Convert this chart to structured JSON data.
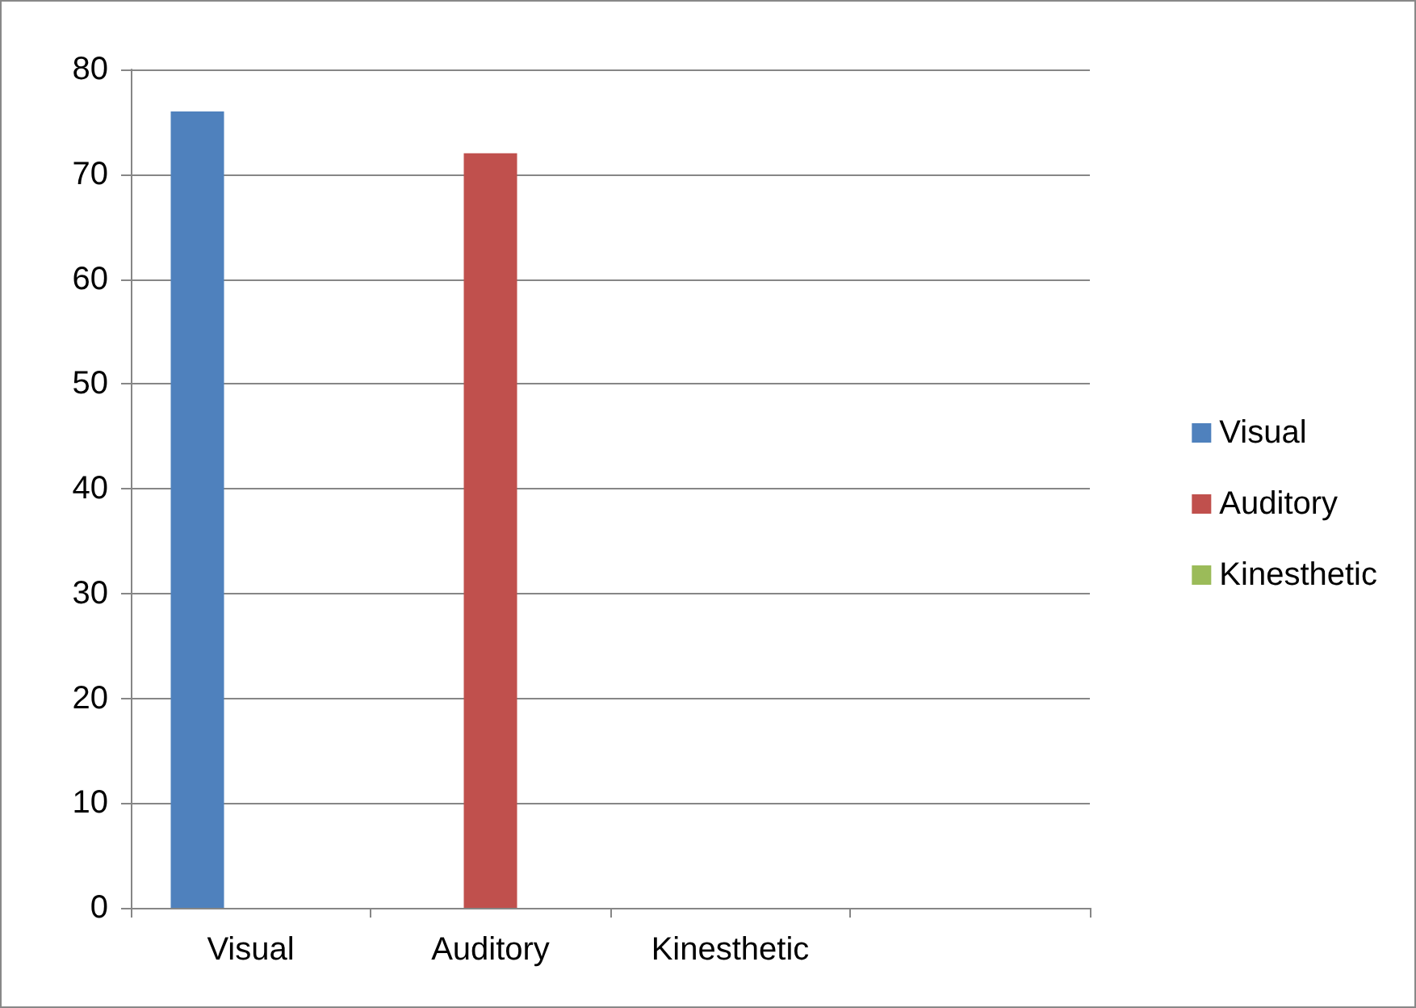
{
  "chart_data": {
    "type": "bar",
    "categories": [
      "Visual",
      "Auditory",
      "Kinesthetic",
      null
    ],
    "series": [
      {
        "name": "Visual",
        "color": "#4f81bd",
        "values": [
          76,
          null,
          null,
          null
        ]
      },
      {
        "name": "Auditory",
        "color": "#c0504d",
        "values": [
          null,
          72,
          null,
          null
        ]
      },
      {
        "name": "Kinesthetic",
        "color": "#9bbb59",
        "values": [
          null,
          null,
          0,
          null
        ]
      }
    ],
    "ylim": [
      0,
      80
    ],
    "yticks": [
      0,
      10,
      20,
      30,
      40,
      50,
      60,
      70,
      80
    ],
    "grid": "y",
    "legend": "right"
  }
}
